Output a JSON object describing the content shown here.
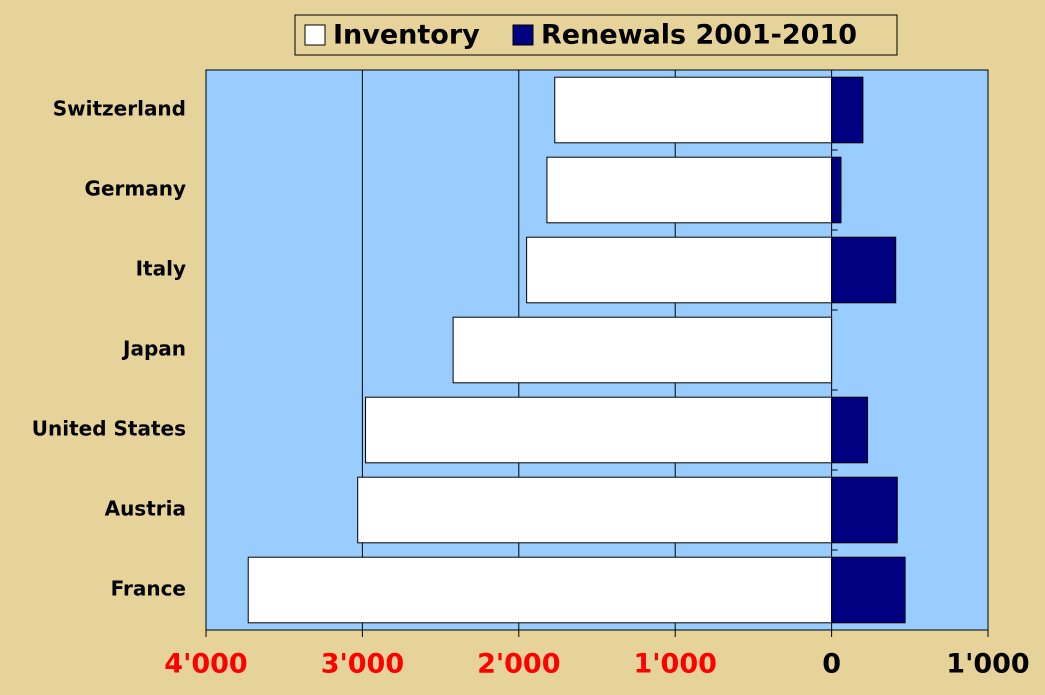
{
  "chart_data": {
    "type": "bar",
    "orientation": "horizontal",
    "categories": [
      "Switzerland",
      "Germany",
      "Italy",
      "Japan",
      "United States",
      "Austria",
      "France"
    ],
    "series": [
      {
        "name": "Inventory",
        "color": "#ffffff",
        "values": [
          -1770,
          -1820,
          -1950,
          -2420,
          -2980,
          -3030,
          -3730
        ]
      },
      {
        "name": "Renewals 2001-2010",
        "color": "#000080",
        "values": [
          200,
          60,
          410,
          0,
          230,
          420,
          470
        ]
      }
    ],
    "xlim": [
      -4000,
      1000
    ],
    "xticks": [
      {
        "value": -4000,
        "label": "4'000"
      },
      {
        "value": -3000,
        "label": "3'000"
      },
      {
        "value": -2000,
        "label": "2'000"
      },
      {
        "value": -1000,
        "label": "1'000"
      },
      0,
      {
        "value": 1000,
        "label": "1'000"
      }
    ],
    "grid": true,
    "legend": "top",
    "negative_tick_color": "#ff0000",
    "tick_color": "#000000",
    "plot_color": "#99ccff",
    "background": "#e6d39a"
  }
}
